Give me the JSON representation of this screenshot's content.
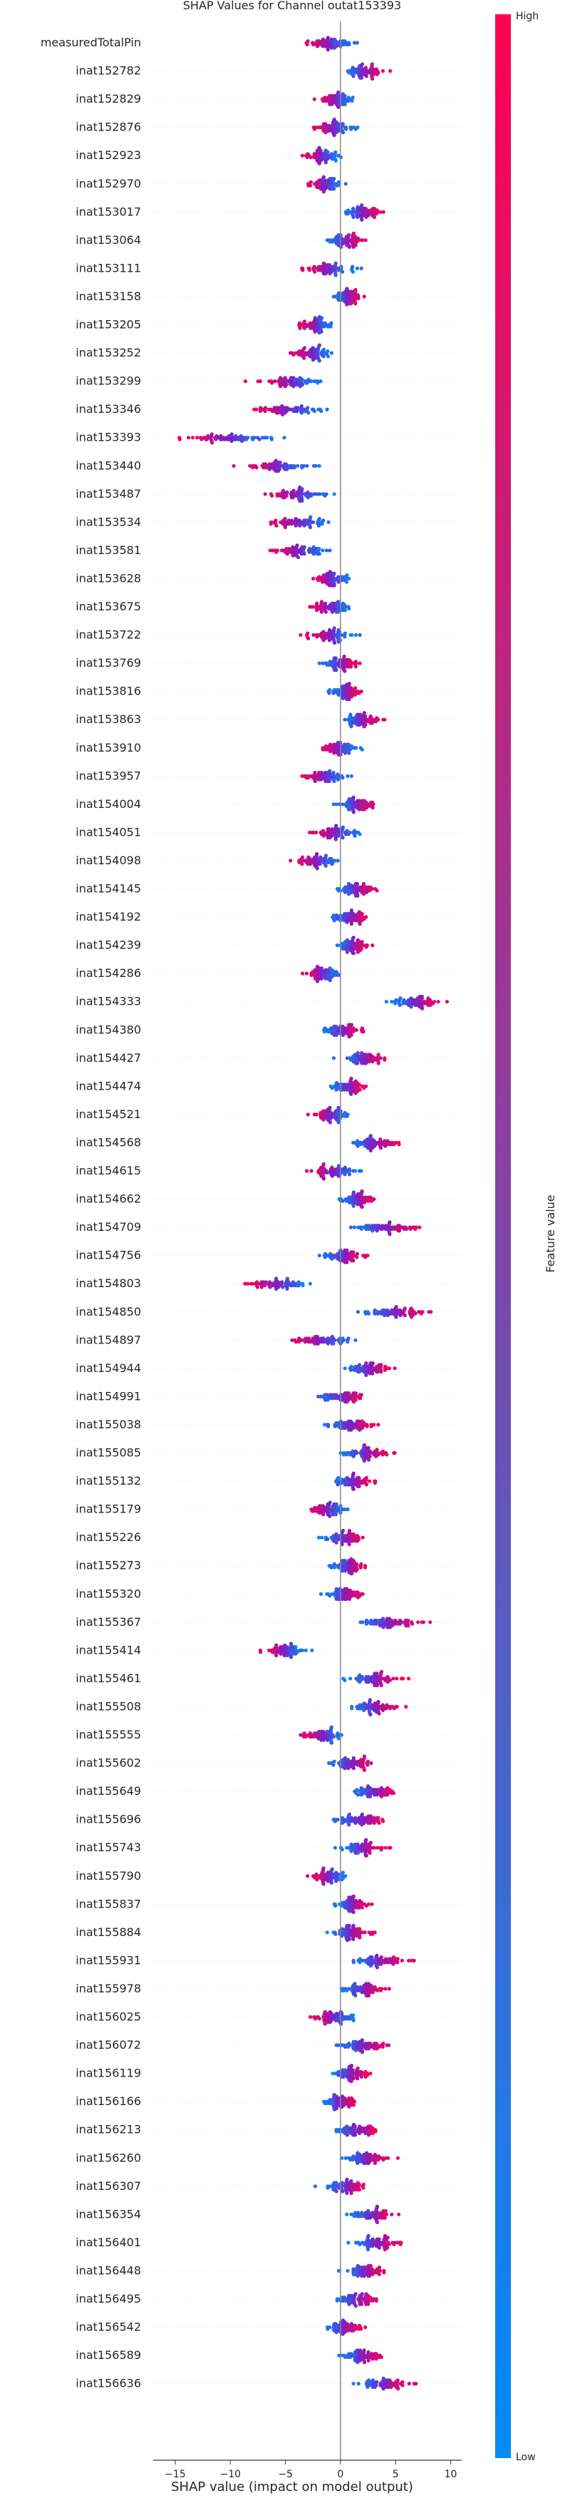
{
  "chart_data": {
    "type": "scatter",
    "subtype": "shap-beeswarm",
    "title": "SHAP Values for Channel outat153393",
    "xlabel": "SHAP value (impact on model output)",
    "xlim": [
      -17,
      11
    ],
    "xticks": [
      -15,
      -10,
      -5,
      0,
      5,
      10
    ],
    "xtick_labels": [
      "−15",
      "−10",
      "−5",
      "0",
      "5",
      "10"
    ],
    "grid": false,
    "colorbar": {
      "label": "Feature value",
      "high_label": "High",
      "low_label": "Low",
      "low_color": "#008bfb",
      "high_color": "#ff0052"
    },
    "features": [
      {
        "name": "measuredTotalPin",
        "center": -1.0,
        "spread": 3.5
      },
      {
        "name": "inat152782",
        "center": 2.2,
        "spread": 2.5
      },
      {
        "name": "inat152829",
        "center": -0.3,
        "spread": 2.4
      },
      {
        "name": "inat152876",
        "center": -0.5,
        "spread": 3.0
      },
      {
        "name": "inat152923",
        "center": -1.7,
        "spread": 2.4
      },
      {
        "name": "inat152970",
        "center": -1.5,
        "spread": 2.6
      },
      {
        "name": "inat153017",
        "center": 2.1,
        "spread": 2.9
      },
      {
        "name": "inat153064",
        "center": 0.5,
        "spread": 2.6
      },
      {
        "name": "inat153111",
        "center": -1.0,
        "spread": 3.5
      },
      {
        "name": "inat153158",
        "center": 0.7,
        "spread": 1.9
      },
      {
        "name": "inat153205",
        "center": -2.2,
        "spread": 2.4
      },
      {
        "name": "inat153252",
        "center": -2.5,
        "spread": 3.1
      },
      {
        "name": "inat153299",
        "center": -4.3,
        "spread": 4.6
      },
      {
        "name": "inat153346",
        "center": -4.5,
        "spread": 4.4
      },
      {
        "name": "inat153393",
        "center": -10.0,
        "spread": 6.5
      },
      {
        "name": "inat153440",
        "center": -6.0,
        "spread": 4.8
      },
      {
        "name": "inat153487",
        "center": -4.0,
        "spread": 4.2
      },
      {
        "name": "inat153534",
        "center": -3.6,
        "spread": 4.1
      },
      {
        "name": "inat153581",
        "center": -3.6,
        "spread": 4.2
      },
      {
        "name": "inat153628",
        "center": -0.8,
        "spread": 2.6
      },
      {
        "name": "inat153675",
        "center": -0.7,
        "spread": 3.0
      },
      {
        "name": "inat153722",
        "center": -0.9,
        "spread": 3.5
      },
      {
        "name": "inat153769",
        "center": 0.1,
        "spread": 3.0
      },
      {
        "name": "inat153816",
        "center": 0.6,
        "spread": 2.5
      },
      {
        "name": "inat153863",
        "center": 2.0,
        "spread": 3.0
      },
      {
        "name": "inat153910",
        "center": -0.1,
        "spread": 2.6
      },
      {
        "name": "inat153957",
        "center": -1.5,
        "spread": 3.1
      },
      {
        "name": "inat154004",
        "center": 1.5,
        "spread": 2.7
      },
      {
        "name": "inat154051",
        "center": -0.4,
        "spread": 3.0
      },
      {
        "name": "inat154098",
        "center": -2.0,
        "spread": 3.1
      },
      {
        "name": "inat154145",
        "center": 1.4,
        "spread": 2.8
      },
      {
        "name": "inat154192",
        "center": 0.8,
        "spread": 2.5
      },
      {
        "name": "inat154239",
        "center": 1.2,
        "spread": 2.2
      },
      {
        "name": "inat154286",
        "center": -1.5,
        "spread": 2.5
      },
      {
        "name": "inat154333",
        "center": 7.0,
        "spread": 3.5
      },
      {
        "name": "inat154380",
        "center": 0.3,
        "spread": 3.0
      },
      {
        "name": "inat154427",
        "center": 2.0,
        "spread": 3.1
      },
      {
        "name": "inat154474",
        "center": 0.7,
        "spread": 2.6
      },
      {
        "name": "inat154521",
        "center": -0.7,
        "spread": 2.5
      },
      {
        "name": "inat154568",
        "center": 3.0,
        "spread": 3.5
      },
      {
        "name": "inat154615",
        "center": -0.6,
        "spread": 3.3
      },
      {
        "name": "inat154662",
        "center": 1.6,
        "spread": 2.8
      },
      {
        "name": "inat154709",
        "center": 4.0,
        "spread": 4.5
      },
      {
        "name": "inat154756",
        "center": 0.4,
        "spread": 3.2
      },
      {
        "name": "inat154803",
        "center": -5.5,
        "spread": 5.0
      },
      {
        "name": "inat154850",
        "center": 5.0,
        "spread": 4.5
      },
      {
        "name": "inat154897",
        "center": -1.5,
        "spread": 4.0
      },
      {
        "name": "inat154944",
        "center": 2.5,
        "spread": 3.3
      },
      {
        "name": "inat154991",
        "center": 0.2,
        "spread": 3.2
      },
      {
        "name": "inat155038",
        "center": 1.0,
        "spread": 3.2
      },
      {
        "name": "inat155085",
        "center": 2.5,
        "spread": 3.6
      },
      {
        "name": "inat155132",
        "center": 1.2,
        "spread": 3.2
      },
      {
        "name": "inat155179",
        "center": -1.0,
        "spread": 2.6
      },
      {
        "name": "inat155226",
        "center": 0.4,
        "spread": 2.9
      },
      {
        "name": "inat155273",
        "center": 0.8,
        "spread": 3.0
      },
      {
        "name": "inat155320",
        "center": 0.3,
        "spread": 3.0
      },
      {
        "name": "inat155367",
        "center": 5.0,
        "spread": 4.2
      },
      {
        "name": "inat155414",
        "center": -5.0,
        "spread": 3.2
      },
      {
        "name": "inat155461",
        "center": 3.0,
        "spread": 3.4
      },
      {
        "name": "inat155508",
        "center": 3.0,
        "spread": 3.6
      },
      {
        "name": "inat155555",
        "center": -1.5,
        "spread": 3.2
      },
      {
        "name": "inat155602",
        "center": 1.0,
        "spread": 3.1
      },
      {
        "name": "inat155649",
        "center": 3.0,
        "spread": 3.4
      },
      {
        "name": "inat155696",
        "center": 2.0,
        "spread": 3.8
      },
      {
        "name": "inat155743",
        "center": 2.0,
        "spread": 3.2
      },
      {
        "name": "inat155790",
        "center": -1.0,
        "spread": 2.6
      },
      {
        "name": "inat155837",
        "center": 1.0,
        "spread": 2.3
      },
      {
        "name": "inat155884",
        "center": 1.0,
        "spread": 2.8
      },
      {
        "name": "inat155931",
        "center": 3.5,
        "spread": 4.0
      },
      {
        "name": "inat155978",
        "center": 2.0,
        "spread": 3.0
      },
      {
        "name": "inat156025",
        "center": -0.5,
        "spread": 3.2
      },
      {
        "name": "inat156072",
        "center": 2.0,
        "spread": 3.3
      },
      {
        "name": "inat156119",
        "center": 1.0,
        "spread": 3.0
      },
      {
        "name": "inat156166",
        "center": 0.0,
        "spread": 2.5
      },
      {
        "name": "inat156213",
        "center": 1.5,
        "spread": 3.1
      },
      {
        "name": "inat156260",
        "center": 2.5,
        "spread": 3.5
      },
      {
        "name": "inat156307",
        "center": 0.5,
        "spread": 3.6
      },
      {
        "name": "inat156354",
        "center": 3.0,
        "spread": 3.0
      },
      {
        "name": "inat156401",
        "center": 3.5,
        "spread": 3.5
      },
      {
        "name": "inat156448",
        "center": 2.0,
        "spread": 3.0
      },
      {
        "name": "inat156495",
        "center": 1.5,
        "spread": 3.2
      },
      {
        "name": "inat156542",
        "center": 0.5,
        "spread": 2.5
      },
      {
        "name": "inat156589",
        "center": 2.0,
        "spread": 3.0
      },
      {
        "name": "inat156636",
        "center": 4.0,
        "spread": 3.8
      }
    ]
  }
}
